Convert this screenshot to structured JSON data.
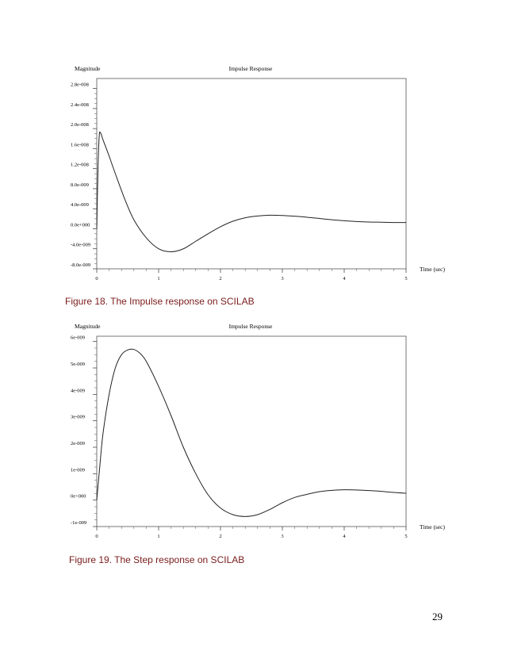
{
  "chart_data": [
    {
      "type": "line",
      "title": "Impulse Response",
      "ylabel": "Magnitude",
      "xlabel": "Time (sec)",
      "xlim": [
        0,
        5
      ],
      "ylim": [
        -8e-09,
        3e-08
      ],
      "xticks": [
        0,
        1,
        2,
        3,
        4,
        5
      ],
      "yticks": [
        -8e-09,
        -4e-09,
        0,
        4e-09,
        8e-09,
        1.2e-08,
        1.6e-08,
        2e-08,
        2.4e-08,
        2.8e-08
      ],
      "ytick_labels": [
        "-8.0e-009",
        "-4.0e-009",
        "0.0e+000",
        "4.0e-009",
        "8.0e-009",
        "1.2e-008",
        "1.6e-008",
        "2.0e-008",
        "2.4e-008",
        "2.8e-008"
      ],
      "grid": false,
      "series": [
        {
          "x": [
            0,
            0.02,
            0.04,
            0.06,
            0.1,
            0.2,
            0.3,
            0.45,
            0.6,
            0.8,
            1.0,
            1.2,
            1.4,
            1.6,
            1.8,
            2.0,
            2.2,
            2.4,
            2.6,
            2.8,
            3.0,
            3.2,
            3.4,
            3.6,
            3.8,
            4.0,
            4.2,
            4.4,
            4.6,
            4.8,
            5.0
          ],
          "y": [
            0,
            1.2e-08,
            1.85e-08,
            1.92e-08,
            1.78e-08,
            1.45e-08,
            1.1e-08,
            6e-09,
            1.8e-09,
            -1.8e-09,
            -4e-09,
            -4.6e-09,
            -4e-09,
            -2.5e-09,
            -1e-09,
            4e-10,
            1.5e-09,
            2.2e-09,
            2.55e-09,
            2.7e-09,
            2.65e-09,
            2.5e-09,
            2.3e-09,
            2.05e-09,
            1.8e-09,
            1.6e-09,
            1.45e-09,
            1.35e-09,
            1.3e-09,
            1.25e-09,
            1.25e-09
          ]
        }
      ]
    },
    {
      "type": "line",
      "title": "Impulse Response",
      "ylabel": "Magnitude",
      "xlabel": "Time (sec)",
      "xlim": [
        0,
        5
      ],
      "ylim": [
        -1e-09,
        6.2e-09
      ],
      "xticks": [
        0,
        1,
        2,
        3,
        4,
        5
      ],
      "yticks": [
        -1e-09,
        0,
        1e-09,
        2e-09,
        3e-09,
        4e-09,
        5e-09,
        6e-09
      ],
      "ytick_labels": [
        "-1e-009",
        "0e+000",
        "1e-009",
        "2e-009",
        "3e-009",
        "4e-009",
        "5e-009",
        "6e-009"
      ],
      "grid": false,
      "series": [
        {
          "x": [
            0,
            0.05,
            0.1,
            0.2,
            0.3,
            0.4,
            0.5,
            0.6,
            0.7,
            0.8,
            1.0,
            1.2,
            1.4,
            1.6,
            1.8,
            2.0,
            2.2,
            2.4,
            2.6,
            2.8,
            3.0,
            3.2,
            3.4,
            3.6,
            3.8,
            4.0,
            4.2,
            4.4,
            4.6,
            4.8,
            5.0
          ],
          "y": [
            0,
            1.3e-09,
            2.5e-09,
            4e-09,
            5e-09,
            5.5e-09,
            5.68e-09,
            5.7e-09,
            5.55e-09,
            5.25e-09,
            4.3e-09,
            3.2e-09,
            2e-09,
            1e-09,
            2e-10,
            -3e-10,
            -5.5e-10,
            -6.2e-10,
            -5.5e-10,
            -3.5e-10,
            -1e-10,
            1e-10,
            2.2e-10,
            3.2e-10,
            3.7e-10,
            3.9e-10,
            3.85e-10,
            3.6e-10,
            3.3e-10,
            2.9e-10,
            2.6e-10
          ]
        }
      ]
    }
  ],
  "captions": {
    "figure18": "Figure 18. The Impulse response on SCILAB",
    "figure19": "Figure 19. The Step response on SCILAB"
  },
  "page_number": "29"
}
